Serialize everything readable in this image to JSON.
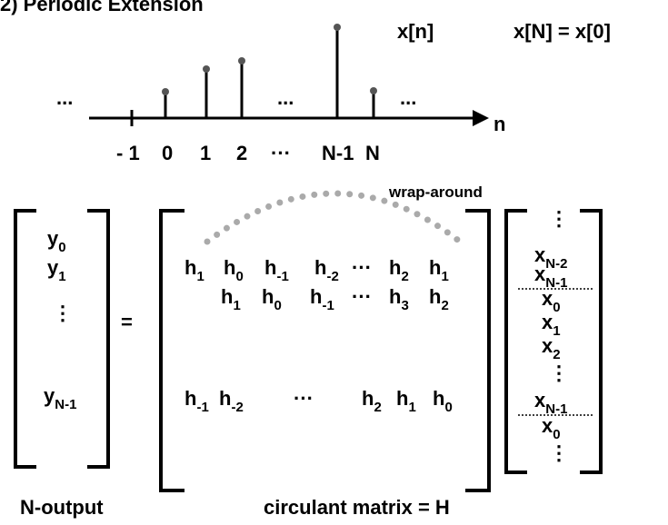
{
  "title": "2)  Periodic Extension",
  "signal_label": "x[n]",
  "periodicity": "x[N]  =  x[0]",
  "axis_label": "n",
  "ellipses": [
    "...",
    "...",
    "..."
  ],
  "axis_ticks": [
    "- 1",
    "0",
    "1",
    "2",
    "···",
    "N-1",
    "N"
  ],
  "wrap_label": "wrap-around",
  "output_vector": [
    {
      "base": "y",
      "sub": "0"
    },
    {
      "base": "y",
      "sub": "1"
    },
    {
      "text": "⋮"
    },
    {
      "base": "y",
      "sub": "N-1"
    }
  ],
  "equals": "=",
  "matrix_rows": [
    [
      {
        "base": "h",
        "sub": "1"
      },
      {
        "base": "h",
        "sub": "0"
      },
      {
        "base": "h",
        "sub": "-1"
      },
      {
        "base": "h",
        "sub": "-2"
      },
      {
        "text": "···"
      },
      {
        "base": "h",
        "sub": "2"
      },
      {
        "base": "h",
        "sub": "1"
      }
    ],
    [
      {
        "base": "h",
        "sub": "1"
      },
      {
        "base": "h",
        "sub": "0"
      },
      {
        "base": "h",
        "sub": "-1"
      },
      {
        "text": "···"
      },
      {
        "base": "h",
        "sub": "3"
      },
      {
        "base": "h",
        "sub": "2"
      }
    ],
    [
      {
        "base": "h",
        "sub": "-1"
      },
      {
        "base": "h",
        "sub": "-2"
      },
      {
        "text": "···"
      },
      {
        "base": "h",
        "sub": "2"
      },
      {
        "base": "h",
        "sub": "1"
      },
      {
        "base": "h",
        "sub": "0"
      }
    ]
  ],
  "input_vector": [
    {
      "text": "⋮"
    },
    {
      "base": "x",
      "sub": "N-2"
    },
    {
      "base": "x",
      "sub": "N-1"
    },
    {
      "base": "x",
      "sub": "0"
    },
    {
      "base": "x",
      "sub": "1"
    },
    {
      "base": "x",
      "sub": "2"
    },
    {
      "text": "⋮"
    },
    {
      "base": "x",
      "sub": "N-1"
    },
    {
      "base": "x",
      "sub": "0"
    },
    {
      "text": "⋮"
    }
  ],
  "footer": {
    "left": "N-output",
    "right": "circulant matrix  =  H"
  }
}
